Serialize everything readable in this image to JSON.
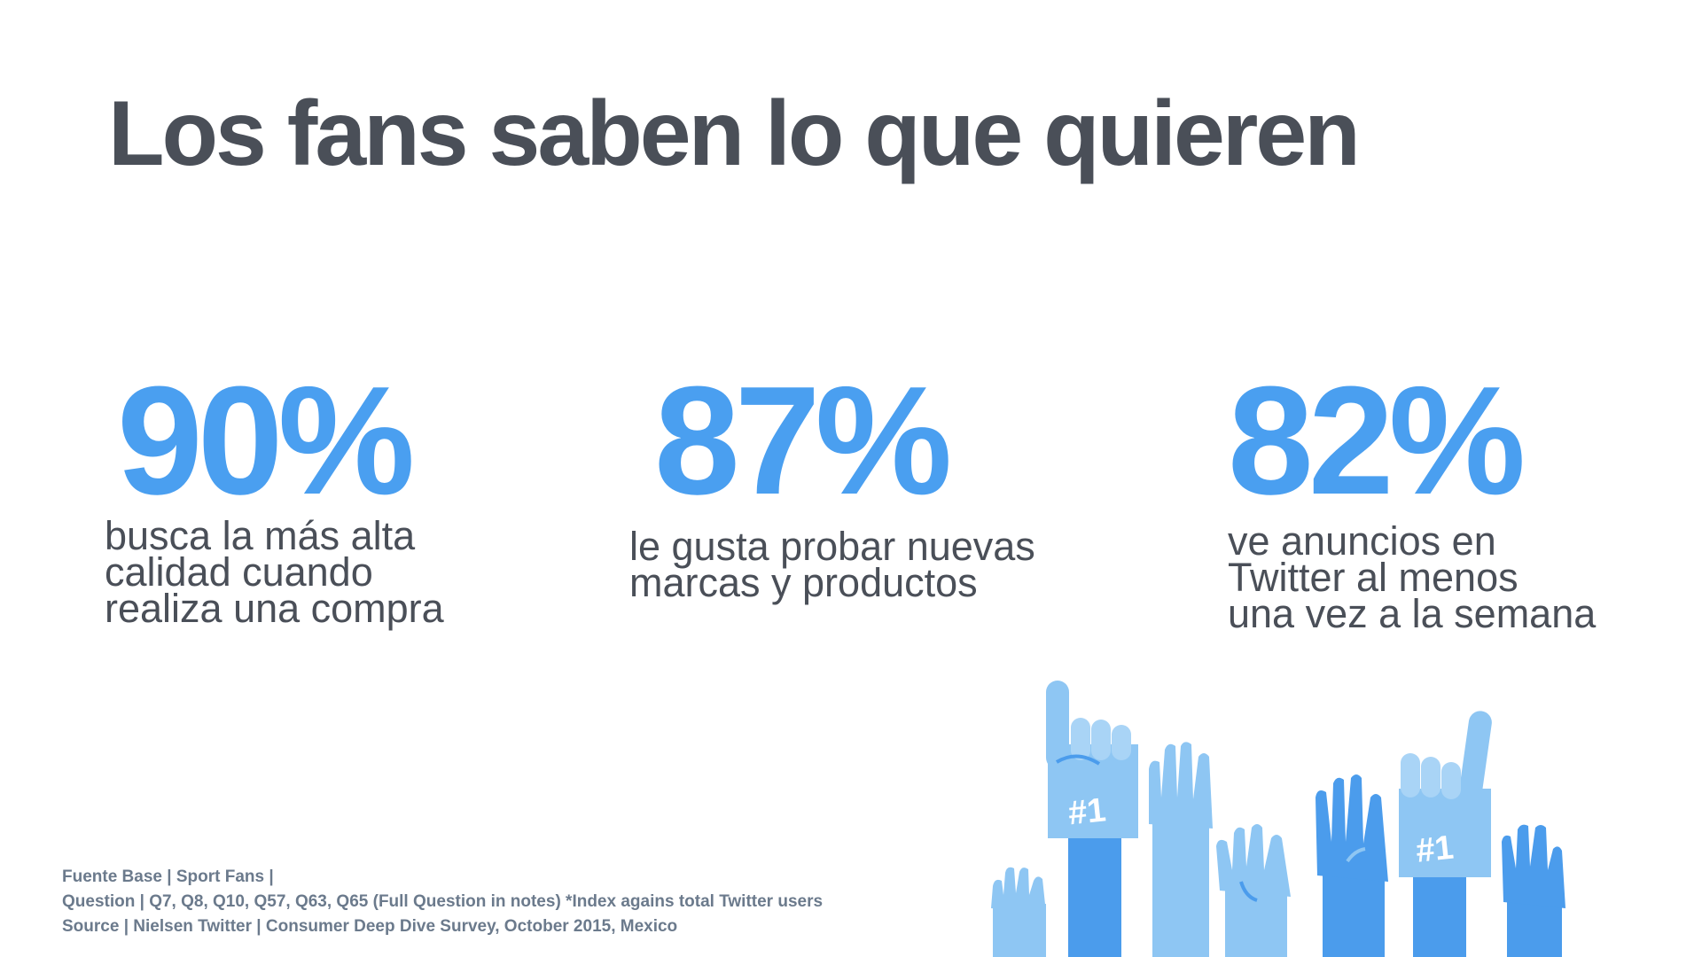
{
  "title": "Los fans saben lo que quieren",
  "stats": [
    {
      "value": "90%",
      "desc_lines": [
        "busca la más alta",
        "calidad cuando",
        "realiza una compra"
      ]
    },
    {
      "value": "87%",
      "desc_lines": [
        "le gusta probar nuevas",
        "marcas y productos"
      ]
    },
    {
      "value": "82%",
      "desc_lines": [
        "ve anuncios en",
        "Twitter al menos",
        "una vez a la semana"
      ]
    }
  ],
  "footnote": {
    "line1": "Fuente Base | Sport Fans |",
    "line2": "Question | Q7, Q8, Q10, Q57, Q63, Q65 (Full Question in notes) *Index agains total Twitter users",
    "line3": "Source | Nielsen Twitter | Consumer Deep Dive Survey, October 2015, Mexico"
  },
  "illustration": {
    "foam_finger_text": "#1",
    "colors": {
      "accent": "#4a9ff0",
      "light_blue": "#8ec6f3",
      "mid_blue": "#4b9cec",
      "dark_text": "#4a4f58"
    }
  }
}
